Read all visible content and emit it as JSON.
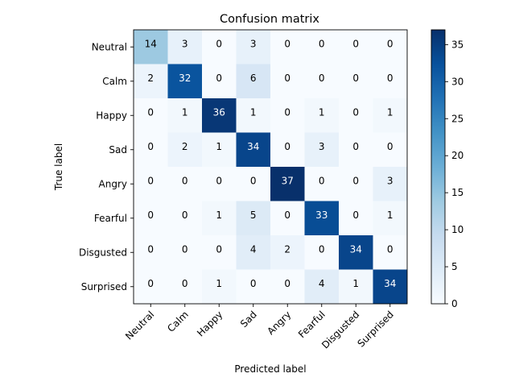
{
  "chart_data": {
    "type": "heatmap",
    "title": "Confusion matrix",
    "xlabel": "Predicted label",
    "ylabel": "True label",
    "x_categories": [
      "Neutral",
      "Calm",
      "Happy",
      "Sad",
      "Angry",
      "Fearful",
      "Disgusted",
      "Surprised"
    ],
    "y_categories": [
      "Neutral",
      "Calm",
      "Happy",
      "Sad",
      "Angry",
      "Fearful",
      "Disgusted",
      "Surprised"
    ],
    "values": [
      [
        14,
        3,
        0,
        3,
        0,
        0,
        0,
        0
      ],
      [
        2,
        32,
        0,
        6,
        0,
        0,
        0,
        0
      ],
      [
        0,
        1,
        36,
        1,
        0,
        1,
        0,
        1
      ],
      [
        0,
        2,
        1,
        34,
        0,
        3,
        0,
        0
      ],
      [
        0,
        0,
        0,
        0,
        37,
        0,
        0,
        3
      ],
      [
        0,
        0,
        1,
        5,
        0,
        33,
        0,
        1
      ],
      [
        0,
        0,
        0,
        4,
        2,
        0,
        34,
        0
      ],
      [
        0,
        0,
        1,
        0,
        0,
        4,
        1,
        34
      ]
    ],
    "colormap": "Blues",
    "colorbar": {
      "min": 0,
      "max": 37,
      "ticks": [
        0,
        5,
        10,
        15,
        20,
        25,
        30,
        35
      ]
    },
    "grid": false
  }
}
